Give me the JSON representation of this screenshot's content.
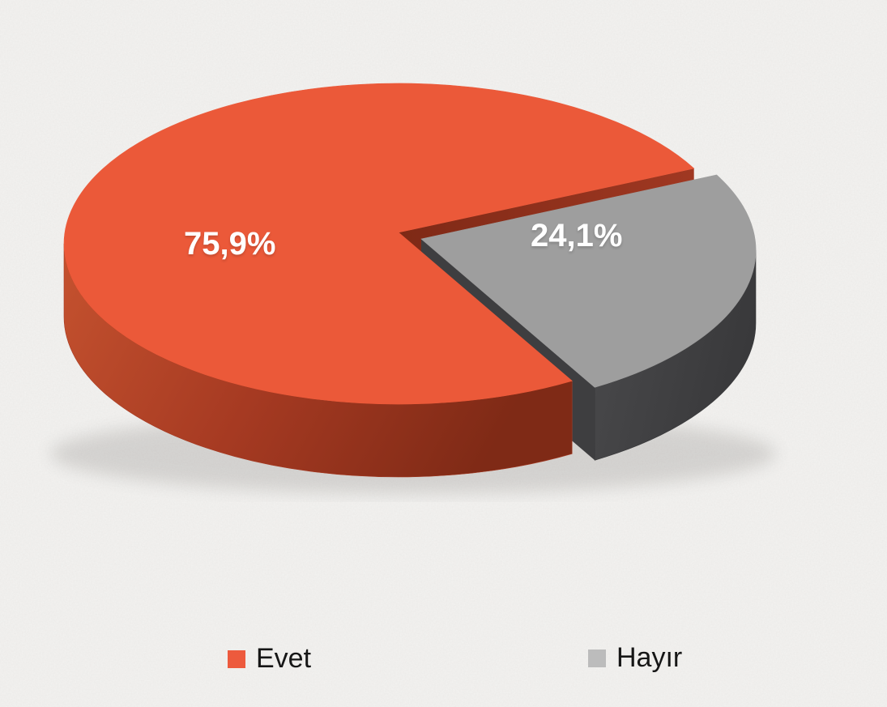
{
  "chart_data": {
    "type": "pie",
    "style": "3d-exploded",
    "title": "",
    "categories": [
      "Evet",
      "Hayır"
    ],
    "values": [
      75.9,
      24.1
    ],
    "value_labels": [
      "75,9%",
      "24,1%"
    ],
    "legend_position": "bottom",
    "background": "#F3F2F0",
    "label_color": "#FFFFFF",
    "series": [
      {
        "name": "Evet",
        "value": 75.9,
        "label": "75,9%",
        "exploded": false,
        "color": "#EB5939",
        "side_gradient": [
          "#C5522F",
          "#A63A22",
          "#7F2A16"
        ],
        "cut_gradient": [
          "#7E2916",
          "#A03822"
        ]
      },
      {
        "name": "Hayır",
        "value": 24.1,
        "label": "24,1%",
        "exploded": true,
        "color": "#9E9E9E",
        "side_gradient": [
          "#4A4A4C",
          "#39393B"
        ],
        "cut_color": "#3E3E40"
      }
    ],
    "legend": [
      {
        "label": "Evet",
        "swatch": "#ED5A3D"
      },
      {
        "label": "Hayır",
        "swatch": "#BCBCBC"
      }
    ]
  }
}
